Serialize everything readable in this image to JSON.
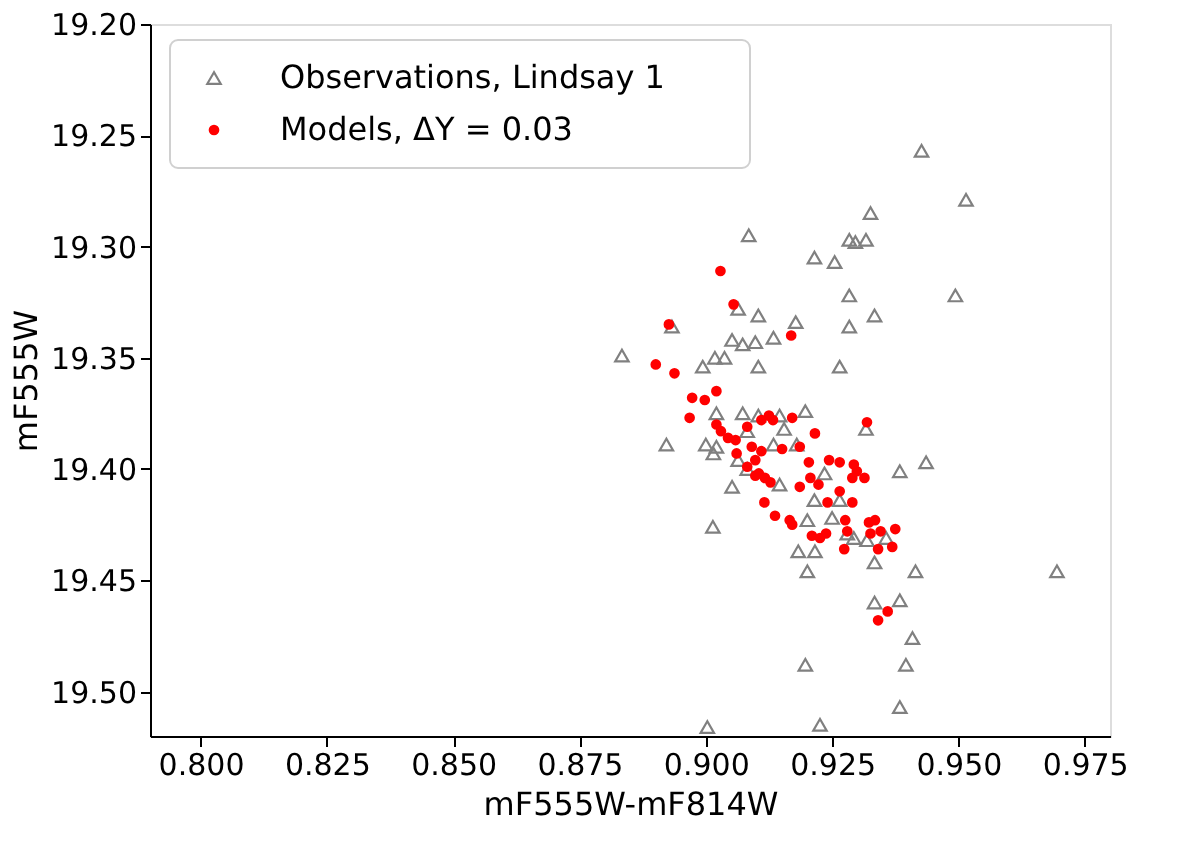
{
  "chart_data": {
    "type": "scatter",
    "xlabel": "mF555W-mF814W",
    "ylabel": "mF555W",
    "xlim": [
      0.79,
      0.98
    ],
    "ylim": [
      19.52,
      19.2
    ],
    "xticks": [
      {
        "value": 0.8,
        "label": "0.800"
      },
      {
        "value": 0.825,
        "label": "0.825"
      },
      {
        "value": 0.85,
        "label": "0.850"
      },
      {
        "value": 0.875,
        "label": "0.875"
      },
      {
        "value": 0.9,
        "label": "0.900"
      },
      {
        "value": 0.925,
        "label": "0.925"
      },
      {
        "value": 0.95,
        "label": "0.950"
      },
      {
        "value": 0.975,
        "label": "0.975"
      }
    ],
    "yticks": [
      {
        "value": 19.2,
        "label": "19.20"
      },
      {
        "value": 19.25,
        "label": "19.25"
      },
      {
        "value": 19.3,
        "label": "19.30"
      },
      {
        "value": 19.35,
        "label": "19.35"
      },
      {
        "value": 19.4,
        "label": "19.40"
      },
      {
        "value": 19.45,
        "label": "19.45"
      },
      {
        "value": 19.5,
        "label": "19.50"
      }
    ],
    "grid": false,
    "legend": "top left",
    "series": [
      {
        "name": "Observations, Lindsay 1",
        "color": "#808080",
        "marker": "triangle",
        "x": [
          0.9427,
          0.9515,
          0.9326,
          0.9085,
          0.9284,
          0.9296,
          0.9317,
          0.9215,
          0.9255,
          0.9494,
          0.9284,
          0.9334,
          0.9284,
          0.9178,
          0.9104,
          0.9064,
          0.8933,
          0.9052,
          0.9073,
          0.9098,
          0.9134,
          0.8834,
          0.8994,
          0.9018,
          0.9037,
          0.9104,
          0.9265,
          0.9021,
          0.9073,
          0.9104,
          0.9146,
          0.9197,
          0.9155,
          0.9317,
          0.9082,
          0.8922,
          0.9,
          0.9021,
          0.9015,
          0.9134,
          0.918,
          0.9082,
          0.9064,
          0.9052,
          0.9146,
          0.9384,
          0.9436,
          0.9235,
          0.9215,
          0.9265,
          0.9014,
          0.9201,
          0.925,
          0.928,
          0.9293,
          0.9319,
          0.9357,
          0.9183,
          0.9216,
          0.9201,
          0.9334,
          0.9415,
          0.9695,
          0.9334,
          0.9384,
          0.9409,
          0.9396,
          0.9197,
          0.9384,
          0.9003,
          0.9226
        ],
        "values": [
          19.257,
          19.279,
          19.285,
          19.295,
          19.297,
          19.298,
          19.297,
          19.305,
          19.307,
          19.322,
          19.322,
          19.331,
          19.336,
          19.334,
          19.331,
          19.328,
          19.336,
          19.342,
          19.344,
          19.343,
          19.341,
          19.349,
          19.354,
          19.35,
          19.35,
          19.354,
          19.354,
          19.375,
          19.375,
          19.376,
          19.376,
          19.374,
          19.382,
          19.382,
          19.383,
          19.389,
          19.389,
          19.39,
          19.393,
          19.389,
          19.389,
          19.4,
          19.396,
          19.408,
          19.407,
          19.401,
          19.397,
          19.402,
          19.414,
          19.414,
          19.426,
          19.423,
          19.422,
          19.429,
          19.431,
          19.432,
          19.431,
          19.437,
          19.437,
          19.446,
          19.442,
          19.446,
          19.446,
          19.46,
          19.459,
          19.476,
          19.488,
          19.488,
          19.507,
          19.516,
          19.515
        ]
      },
      {
        "name": "Models, ΔY = 0.03",
        "color": "#ff0000",
        "marker": "circle",
        "x": [
          0.9029,
          0.9055,
          0.8927,
          0.9169,
          0.8901,
          0.8938,
          0.8973,
          0.8998,
          0.9021,
          0.8968,
          0.9021,
          0.903,
          0.9044,
          0.9059,
          0.9082,
          0.911,
          0.9125,
          0.9133,
          0.9171,
          0.9216,
          0.9319,
          0.9091,
          0.911,
          0.9151,
          0.9186,
          0.9061,
          0.9098,
          0.9105,
          0.9117,
          0.9128,
          0.9082,
          0.9098,
          0.9204,
          0.9244,
          0.9265,
          0.9293,
          0.9299,
          0.9314,
          0.9207,
          0.9186,
          0.9223,
          0.9265,
          0.929,
          0.9116,
          0.9137,
          0.9166,
          0.9171,
          0.9241,
          0.929,
          0.921,
          0.9226,
          0.9238,
          0.9276,
          0.928,
          0.9274,
          0.9323,
          0.9335,
          0.9346,
          0.9375,
          0.9326,
          0.9341,
          0.9369,
          0.936,
          0.9341
        ],
        "values": [
          19.311,
          19.326,
          19.335,
          19.34,
          19.353,
          19.357,
          19.368,
          19.369,
          19.365,
          19.377,
          19.38,
          19.383,
          19.386,
          19.387,
          19.381,
          19.378,
          19.376,
          19.378,
          19.377,
          19.384,
          19.379,
          19.39,
          19.392,
          19.391,
          19.39,
          19.393,
          19.396,
          19.402,
          19.404,
          19.406,
          19.399,
          19.403,
          19.397,
          19.396,
          19.397,
          19.398,
          19.401,
          19.404,
          19.404,
          19.408,
          19.407,
          19.41,
          19.404,
          19.415,
          19.421,
          19.423,
          19.425,
          19.415,
          19.415,
          19.43,
          19.431,
          19.429,
          19.423,
          19.428,
          19.436,
          19.424,
          19.423,
          19.428,
          19.427,
          19.429,
          19.436,
          19.435,
          19.464,
          19.468
        ]
      }
    ]
  }
}
